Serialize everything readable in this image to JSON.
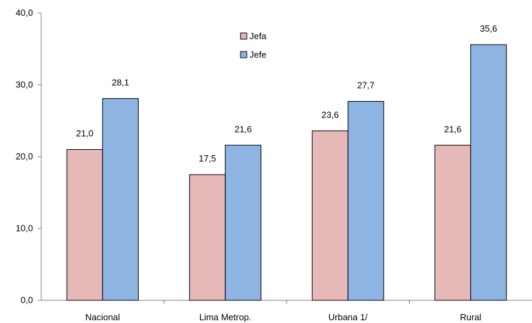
{
  "chart_data": {
    "type": "bar",
    "categories": [
      "Nacional",
      "Lima Metrop.",
      "Urbana 1/",
      "Rural"
    ],
    "series": [
      {
        "name": "Jefa",
        "values": [
          21.0,
          17.5,
          23.6,
          21.6
        ],
        "labels": [
          "21,0",
          "17,5",
          "23,6",
          "21,6"
        ],
        "color": "#E6B9B8"
      },
      {
        "name": "Jefe",
        "values": [
          28.1,
          21.6,
          27.7,
          35.6
        ],
        "labels": [
          "28,1",
          "21,6",
          "27,7",
          "35,6"
        ],
        "color": "#8EB4E3"
      }
    ],
    "yticks": [
      0,
      10,
      20,
      30,
      40
    ],
    "ytick_labels": [
      "0,0",
      "10,0",
      "20,0",
      "30,0",
      "40,0"
    ],
    "ylim": [
      0,
      40
    ],
    "grid": false,
    "legend": "top-center"
  }
}
